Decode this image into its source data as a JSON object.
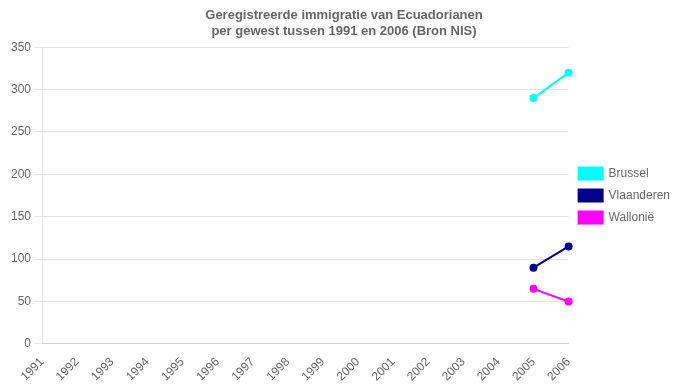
{
  "chart_data": {
    "type": "line",
    "title": "Geregistreerde immigratie van Ecuadorianen\nper gewest tussen 1991 en 2006 (Bron NIS)",
    "categories": [
      "1991",
      "1992",
      "1993",
      "1994",
      "1995",
      "1996",
      "1997",
      "1998",
      "1999",
      "2000",
      "2001",
      "2002",
      "2003",
      "2004",
      "2005",
      "2006"
    ],
    "series": [
      {
        "name": "Brussel",
        "color": "#00ffff",
        "values": [
          null,
          null,
          null,
          null,
          null,
          null,
          null,
          null,
          null,
          null,
          null,
          null,
          null,
          null,
          290,
          320
        ]
      },
      {
        "name": "Vlaanderen",
        "color": "#00008b",
        "values": [
          null,
          null,
          null,
          null,
          null,
          null,
          null,
          null,
          null,
          null,
          null,
          null,
          null,
          null,
          90,
          115
        ]
      },
      {
        "name": "Wallonië",
        "color": "#ff00ff",
        "values": [
          null,
          null,
          null,
          null,
          null,
          null,
          null,
          null,
          null,
          null,
          null,
          null,
          null,
          null,
          65,
          50
        ]
      }
    ],
    "ylim": [
      0,
      350
    ],
    "yticks": [
      0,
      50,
      100,
      150,
      200,
      250,
      300,
      350
    ],
    "grid": "y",
    "legend": "right"
  }
}
